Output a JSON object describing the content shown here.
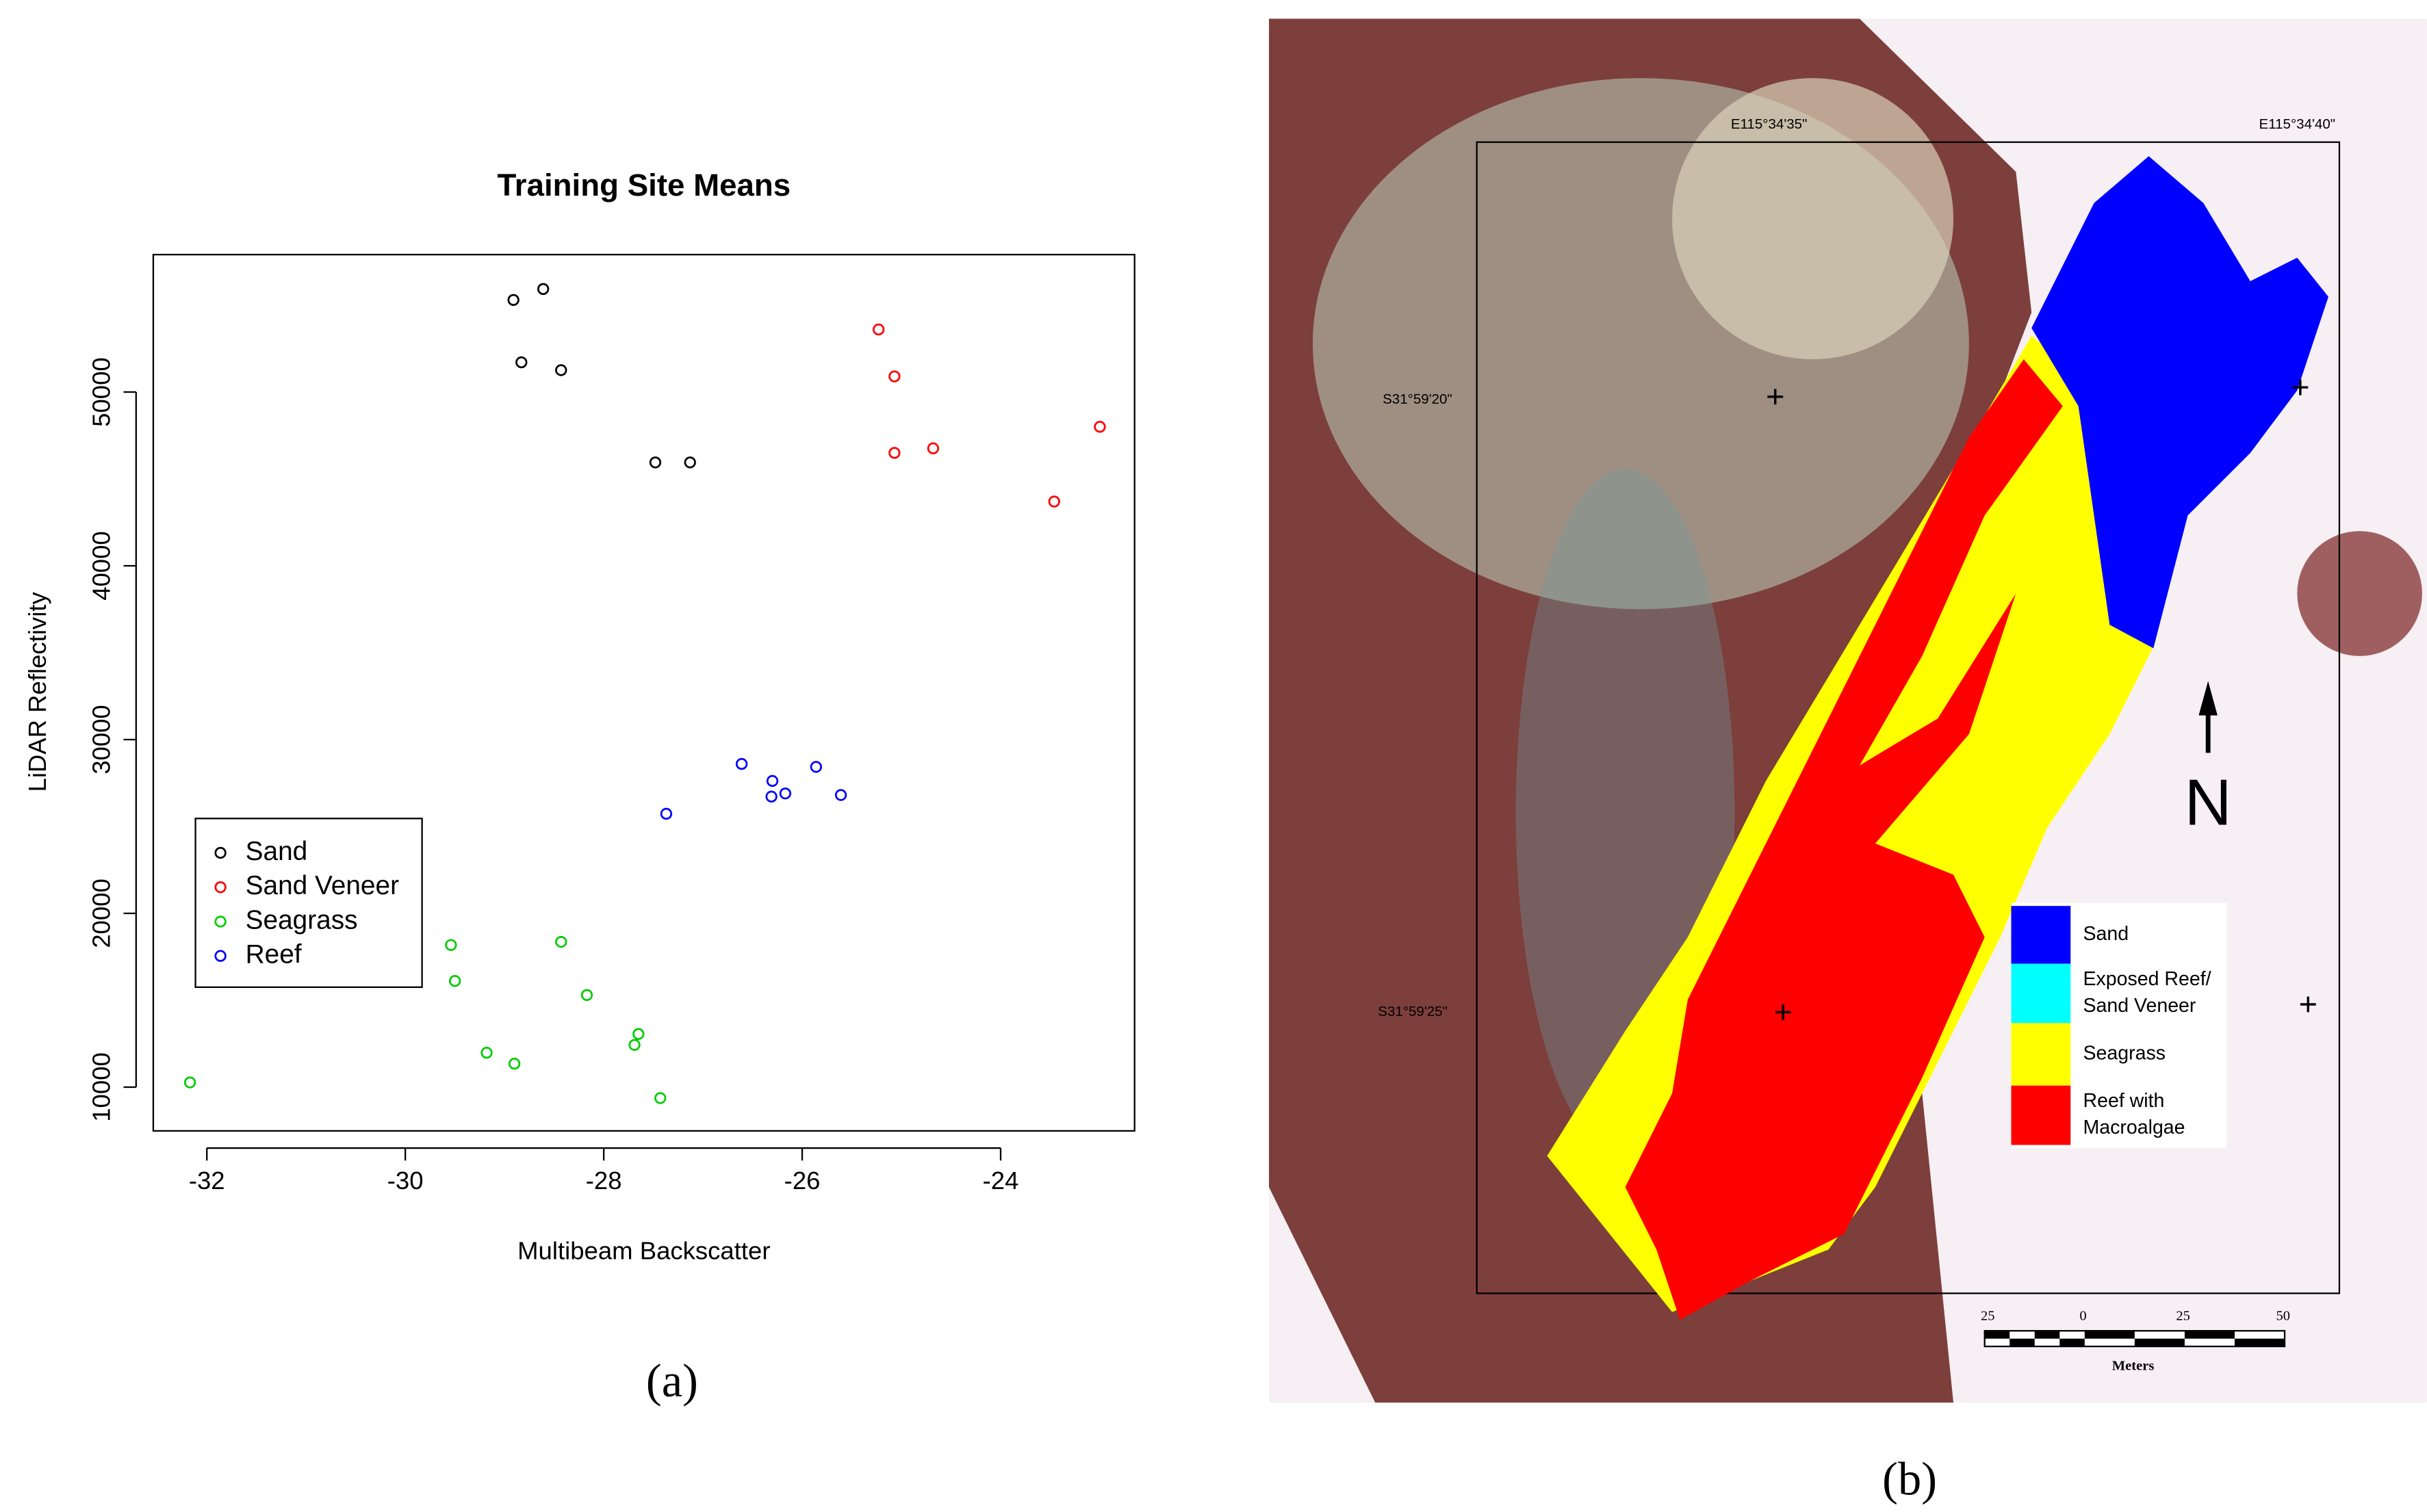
{
  "chart_data": {
    "type": "scatter",
    "title": "Training Site Means",
    "x_label": "Multibeam Backscatter",
    "y_label": "LiDAR Reflectivity",
    "xlim": [
      -32.54,
      -22.65
    ],
    "ylim": [
      7483,
      57910
    ],
    "xticks": [
      -32,
      -30,
      -28,
      -26,
      -24
    ],
    "yticks": [
      10000,
      20000,
      30000,
      40000,
      50000
    ],
    "legend": "bottom-left",
    "series": [
      {
        "name": "Sand",
        "color": "#000000",
        "x": [
          -28.91,
          -28.61,
          -28.83,
          -28.43,
          -27.48,
          -27.13
        ],
        "values": [
          55300,
          55930,
          51710,
          51260,
          45950,
          45950
        ]
      },
      {
        "name": "Sand Veneer",
        "color": "#ff0000",
        "x": [
          -25.23,
          -25.07,
          -25.07,
          -24.68,
          -23.46,
          -23.0
        ],
        "values": [
          53600,
          50900,
          46500,
          46760,
          43700,
          48000
        ]
      },
      {
        "name": "Seagrass",
        "color": "#00cc00",
        "x": [
          -32.17,
          -29.54,
          -29.5,
          -29.18,
          -28.9,
          -28.43,
          -28.17,
          -27.65,
          -27.69,
          -27.43
        ],
        "values": [
          10270,
          18180,
          16110,
          11980,
          11350,
          18360,
          15300,
          13060,
          12430,
          9370
        ]
      },
      {
        "name": "Reef",
        "color": "#0000ff",
        "x": [
          -26.61,
          -26.3,
          -26.31,
          -26.17,
          -25.86,
          -25.61,
          -27.37
        ],
        "values": [
          28600,
          27620,
          26720,
          26900,
          28430,
          26810,
          25730
        ]
      }
    ]
  },
  "panel_a_label": "(a)",
  "map": {
    "coords": {
      "top_left": "E115°34'35\"",
      "top_right": "E115°34'40\"",
      "left_upper": "S31°59'20\"",
      "left_lower": "S31°59'25\""
    },
    "north": "N",
    "legend": [
      {
        "label": [
          "Sand"
        ],
        "color": "#0000ff"
      },
      {
        "label": [
          "Exposed Reef/",
          "Sand Veneer"
        ],
        "color": "#00ffff"
      },
      {
        "label": [
          "Seagrass"
        ],
        "color": "#ffff00"
      },
      {
        "label": [
          "Reef with",
          "Macroalgae"
        ],
        "color": "#ff0000"
      }
    ],
    "scale": {
      "ticks": [
        "25",
        "0",
        "25",
        "50"
      ],
      "unit": "Meters"
    }
  },
  "panel_b_label": "(b)"
}
